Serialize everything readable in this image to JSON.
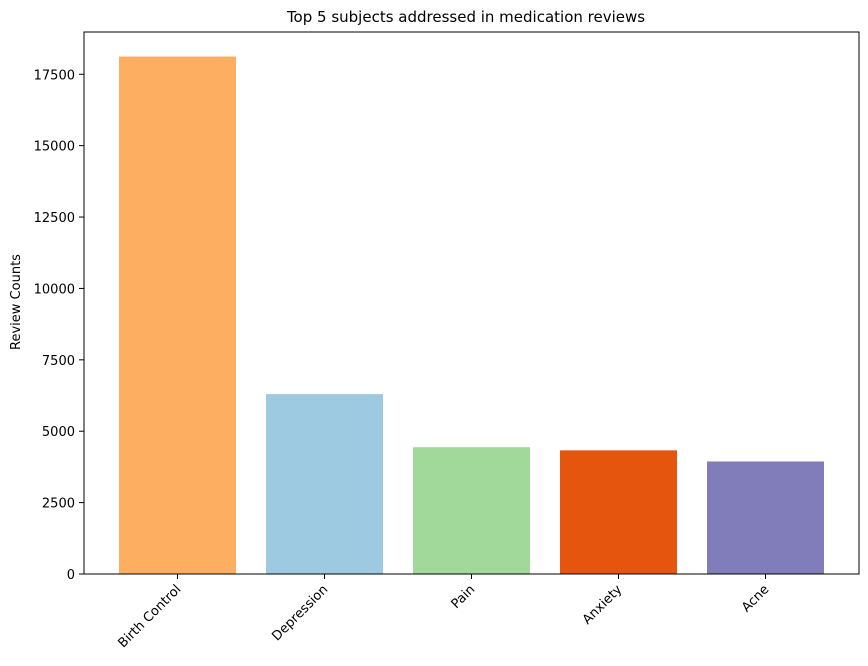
{
  "chart_data": {
    "type": "bar",
    "title": "Top 5 subjects addressed in medication reviews",
    "xlabel": "",
    "ylabel": "Review Counts",
    "categories": [
      "Birth Control",
      "Depression",
      "Pain",
      "Anxiety",
      "Acne"
    ],
    "values": [
      18120,
      6300,
      4440,
      4330,
      3940
    ],
    "colors": [
      "#fdae61",
      "#9ecae1",
      "#a1d99b",
      "#e6550d",
      "#807dba"
    ],
    "ylim": [
      0,
      18980
    ],
    "yticks": [
      0,
      2500,
      5000,
      7500,
      10000,
      12500,
      15000,
      17500
    ],
    "ytick_labels": [
      "0",
      "2500",
      "5000",
      "7500",
      "10000",
      "12500",
      "15000",
      "17500"
    ],
    "grid": false,
    "legend": "none"
  }
}
